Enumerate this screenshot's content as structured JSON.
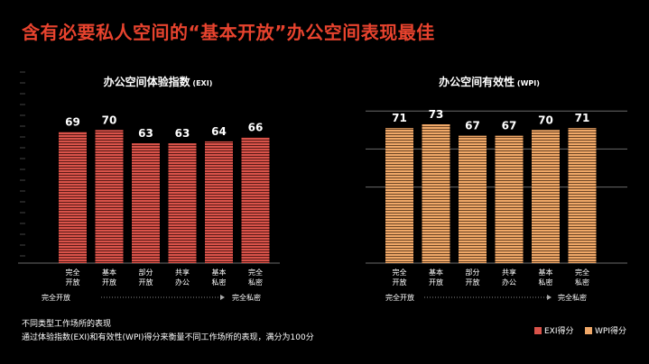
{
  "title": "含有必要私人空间的“基本开放”办公空间表现最佳",
  "footnote_1": "不同类型工作场所的表现",
  "footnote_2": "通过体验指数(EXI)和有效性(WPI)得分来衡量不同工作场所的表现，满分为100分",
  "colors": {
    "title": "#e8432e",
    "exi": "#d9534a",
    "wpi": "#f0a868"
  },
  "chart_data": [
    {
      "type": "bar",
      "title": "办公空间体验指数",
      "title_suffix": "(EXI)",
      "categories": [
        "完全\n开放",
        "基本\n开放",
        "部分\n开放",
        "共享\n办公",
        "基本\n私密",
        "完全\n私密"
      ],
      "values": [
        69,
        70,
        63,
        63,
        64,
        66
      ],
      "series_name": "EXI得分",
      "axis_left": "完全开放",
      "axis_right": "完全私密",
      "grid": false
    },
    {
      "type": "bar",
      "title": "办公空间有效性",
      "title_suffix": "(WPI)",
      "categories": [
        "完全\n开放",
        "基本\n开放",
        "部分\n开放",
        "共享\n办公",
        "基本\n私密",
        "完全\n私密"
      ],
      "values": [
        71,
        73,
        67,
        67,
        70,
        71
      ],
      "series_name": "WPI得分",
      "axis_left": "完全开放",
      "axis_right": "完全私密",
      "grid": true
    }
  ]
}
